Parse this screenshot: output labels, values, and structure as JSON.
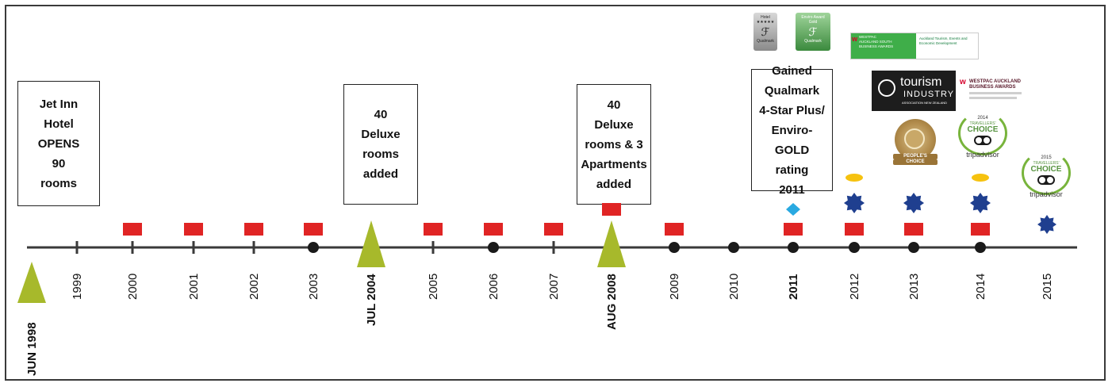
{
  "events": [
    {
      "lines": [
        "Jet Inn",
        "Hotel",
        "OPENS",
        "90",
        "rooms"
      ]
    },
    {
      "lines": [
        "40",
        "Deluxe",
        "rooms",
        "added"
      ]
    },
    {
      "lines": [
        "40",
        "Deluxe",
        "rooms & 3",
        "Apartments",
        "added"
      ]
    },
    {
      "lines": [
        "Gained",
        "Qualmark",
        "4-Star Plus/",
        "Enviro-GOLD",
        "rating",
        "2011"
      ]
    }
  ],
  "years": [
    "JUN 1998",
    "1999",
    "2000",
    "2001",
    "2002",
    "2003",
    "JUL 2004",
    "2005",
    "2006",
    "2007",
    "AUG 2008",
    "2009",
    "2010",
    "2011",
    "2012",
    "2013",
    "2014",
    "2015"
  ],
  "bold_years": [
    "JUN 1998",
    "JUL 2004",
    "AUG 2008",
    "2011"
  ],
  "logos": {
    "qualmark_hotel": {
      "line1": "Hotel",
      "line2": "★★★★★",
      "brand": "Qualmark"
    },
    "qualmark_enviro": {
      "line1": "Enviro Award",
      "line2": "Gold",
      "brand": "Qualmark"
    },
    "westpac_south": {
      "line1": "WESTPAC",
      "line2": "AUCKLAND SOUTH",
      "line3": "BUSINESS AWARDS",
      "right": "Auckland Tourism, Events and Economic Development"
    },
    "tourism_industry": {
      "line1": "tourism",
      "line2": "INDUSTRY",
      "line3": "ASSOCIATION NEW ZEALAND"
    },
    "westpac_auckland": {
      "line1": "WESTPAC AUCKLAND",
      "line2": "BUSINESS AWARDS"
    },
    "peoples_choice": {
      "line1": "PEOPLE'S",
      "line2": "CHOICE"
    },
    "tripadvisor_2014": {
      "year": "2014",
      "line1": "TRAVELLERS'",
      "line2": "CHOICE",
      "brand": "tripadvisor"
    },
    "tripadvisor_2015": {
      "year": "2015",
      "line1": "TRAVELLERS'",
      "line2": "CHOICE",
      "brand": "tripadvisor"
    }
  },
  "colors": {
    "triangle": "#a7b92b",
    "square": "#e02424",
    "dot": "#1a1a1a",
    "star": "#1f3f8f",
    "diamond": "#29a9e1",
    "ellipse": "#f6c20f",
    "axis": "#3a3a3a"
  }
}
